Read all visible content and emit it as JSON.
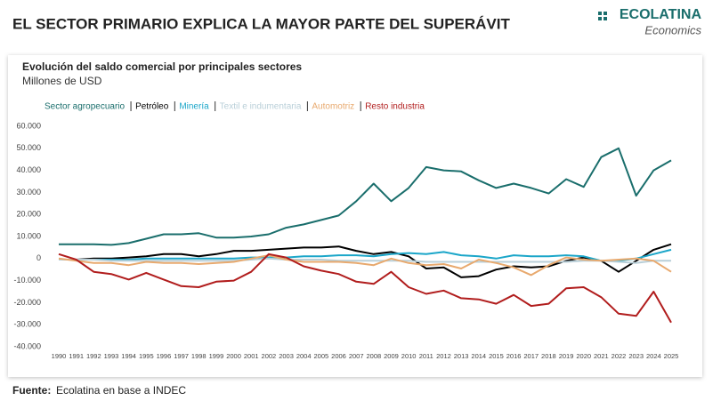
{
  "header": {
    "title": "EL SECTOR PRIMARIO EXPLICA LA MAYOR PARTE DEL SUPERÁVIT",
    "brand": "ECOLATINA",
    "brand_sub": "Economics"
  },
  "chart_data": {
    "type": "line",
    "title": "Evolución del saldo comercial por principales sectores",
    "subtitle": "Millones de USD",
    "categories": [
      "1990",
      "1991",
      "1992",
      "1993",
      "1994",
      "1995",
      "1996",
      "1997",
      "1998",
      "1999",
      "2000",
      "2001",
      "2002",
      "2003",
      "2004",
      "2005",
      "2006",
      "2007",
      "2008",
      "2009",
      "2010",
      "2011",
      "2012",
      "2013",
      "2014",
      "2015",
      "2016",
      "2017",
      "2018",
      "2019",
      "2020",
      "2021",
      "2022",
      "2023",
      "2024",
      "2025"
    ],
    "ylim": [
      -40000,
      60000
    ],
    "yticks": [
      {
        "value": -40000,
        "label": "-40.000"
      },
      {
        "value": -30000,
        "label": "-30.000"
      },
      {
        "value": -20000,
        "label": "-20.000"
      },
      {
        "value": -10000,
        "label": "-10.000"
      },
      0,
      {
        "value": 10000,
        "label": "10.000"
      },
      {
        "value": 20000,
        "label": "20.000"
      },
      {
        "value": 30000,
        "label": "30.000"
      },
      {
        "value": 40000,
        "label": "40.000"
      },
      {
        "value": 50000,
        "label": "50.000"
      },
      {
        "value": 60000,
        "label": "60.000"
      }
    ],
    "grid": false,
    "series": [
      {
        "name": "Sector agropecuario",
        "color": "#1a6e6c",
        "values": [
          6500,
          6500,
          6500,
          6200,
          7000,
          9000,
          11000,
          11000,
          11500,
          9500,
          9500,
          10000,
          11000,
          14000,
          15500,
          17500,
          19500,
          26000,
          34000,
          26000,
          32000,
          41500,
          40000,
          39500,
          35500,
          32000,
          34000,
          32000,
          29500,
          36000,
          32500,
          46000,
          50000,
          28500,
          40000,
          44500
        ]
      },
      {
        "name": "Petróleo",
        "color": "#000000",
        "values": [
          -500,
          -500,
          0,
          0,
          500,
          1000,
          2000,
          2000,
          1000,
          2000,
          3500,
          3500,
          4000,
          4500,
          5000,
          5000,
          5500,
          3500,
          2000,
          3000,
          1000,
          -4500,
          -4000,
          -8500,
          -8000,
          -5000,
          -3500,
          -4000,
          -3500,
          -1000,
          500,
          -1000,
          -6000,
          -1000,
          4000,
          6500
        ]
      },
      {
        "name": "Minería",
        "color": "#1ba6c9",
        "values": [
          -500,
          -500,
          -500,
          -500,
          -500,
          0,
          0,
          0,
          0,
          0,
          0,
          500,
          500,
          500,
          1000,
          1000,
          1500,
          1500,
          1000,
          2000,
          2500,
          2000,
          3000,
          1500,
          1000,
          0,
          1500,
          1000,
          1000,
          1500,
          1000,
          -1000,
          -1000,
          0,
          2000,
          4000
        ]
      },
      {
        "name": "Textil e indumentaria",
        "color": "#b9cfd8",
        "values": [
          -500,
          -500,
          -500,
          -1000,
          -1000,
          -1000,
          -1000,
          -1000,
          -1000,
          -1000,
          -1000,
          -500,
          0,
          -500,
          -500,
          -500,
          -1000,
          -1000,
          -1000,
          -1000,
          -1000,
          -1500,
          -1500,
          -1500,
          -1500,
          -1500,
          -1500,
          -1500,
          -1500,
          -1500,
          -1000,
          -1000,
          -1500,
          -2000,
          -1000,
          -1000
        ]
      },
      {
        "name": "Automotriz",
        "color": "#e8a96e",
        "values": [
          0,
          -1000,
          -2000,
          -2000,
          -3000,
          -1500,
          -2000,
          -2000,
          -2500,
          -2000,
          -1500,
          0,
          1500,
          -500,
          -1500,
          -1500,
          -1500,
          -2000,
          -3000,
          0,
          -2000,
          -3000,
          -2500,
          -4500,
          -500,
          -2000,
          -4000,
          -7500,
          -3000,
          500,
          -500,
          -1000,
          -500,
          0,
          -1000,
          -6000
        ]
      },
      {
        "name": "Resto industria",
        "color": "#b11d1d",
        "values": [
          2000,
          -500,
          -6000,
          -7000,
          -9500,
          -6500,
          -9500,
          -12500,
          -13000,
          -10500,
          -10000,
          -6000,
          2000,
          500,
          -3500,
          -5500,
          -7000,
          -10500,
          -11500,
          -6000,
          -13000,
          -16000,
          -14500,
          -18000,
          -18500,
          -20500,
          -16500,
          -21500,
          -20500,
          -13500,
          -13000,
          -17500,
          -25000,
          -26000,
          -15000,
          -29000
        ]
      }
    ]
  },
  "footer": {
    "label": "Fuente:",
    "text": "Ecolatina en base a INDEC"
  }
}
